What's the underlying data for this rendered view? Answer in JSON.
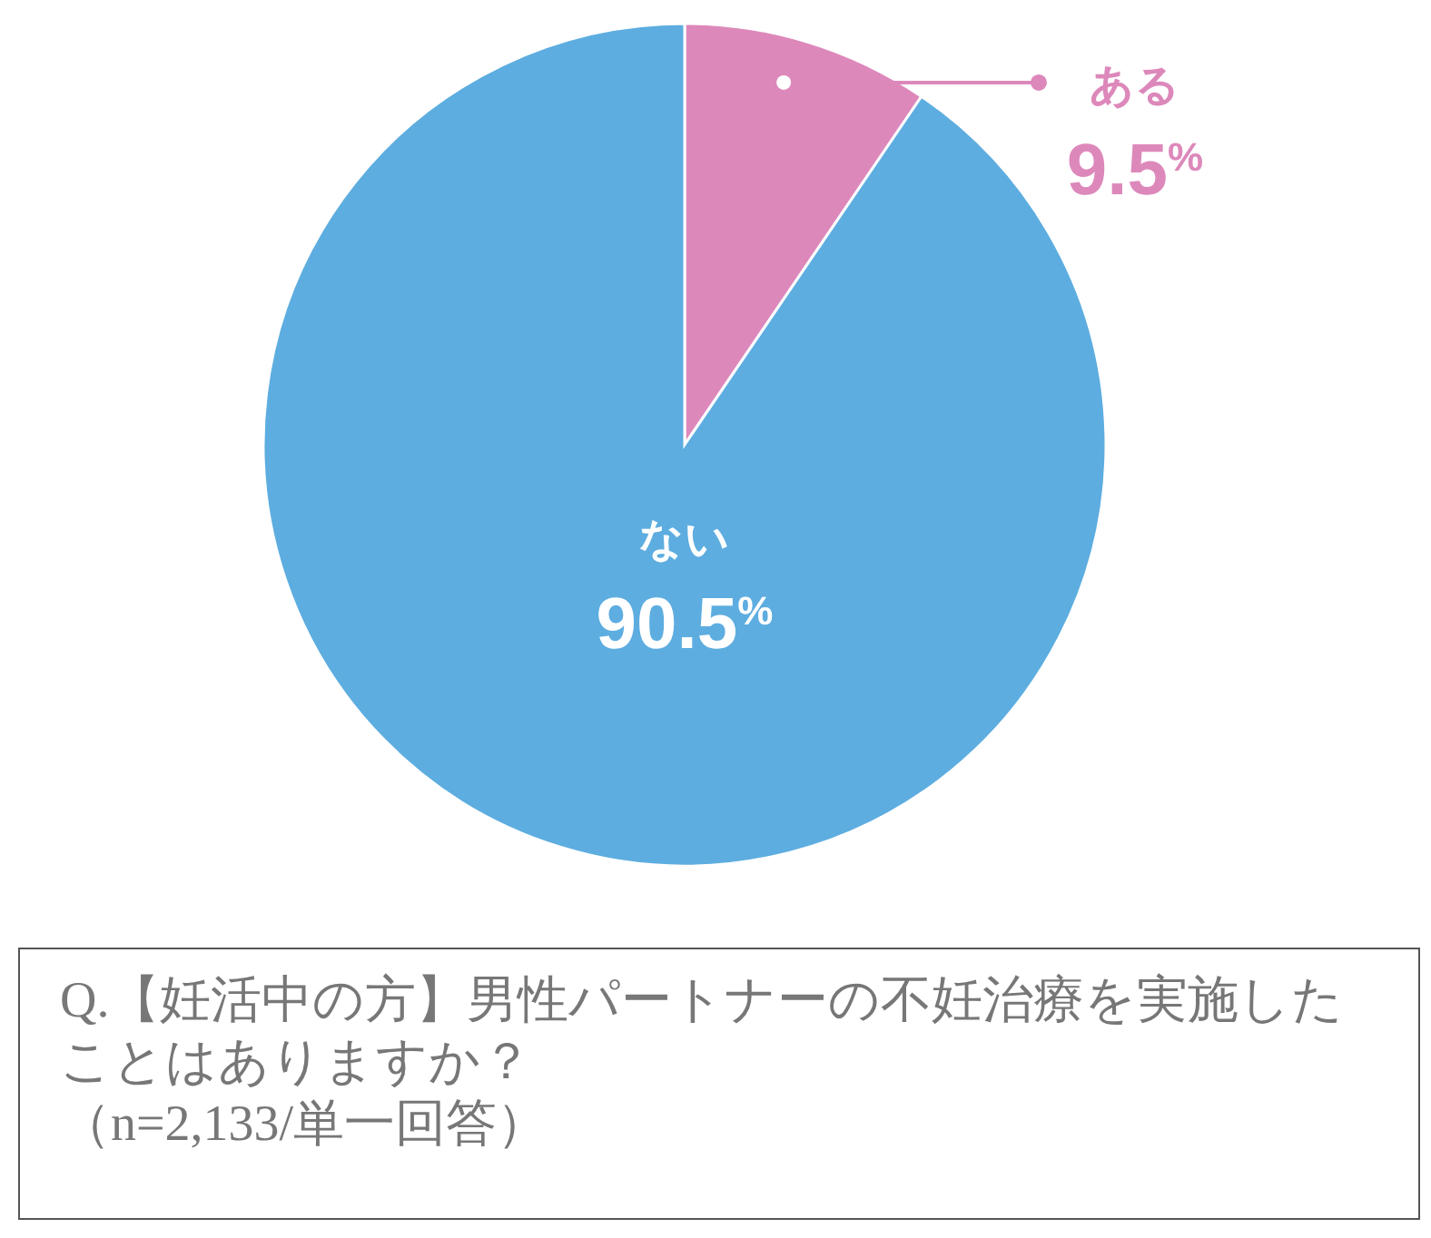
{
  "chart_data": {
    "type": "pie",
    "title": "Q.【妊活中の方】男性パートナーの不妊治療を実施したことはありますか？",
    "subtitle": "（n=2,133/単一回答）",
    "categories": [
      "ある",
      "ない"
    ],
    "values": [
      9.5,
      90.5
    ],
    "colors": [
      "#dd88bb",
      "#5dade0"
    ],
    "value_labels": [
      "9.5$^{%}$",
      "90.5$^{%}$"
    ]
  }
}
